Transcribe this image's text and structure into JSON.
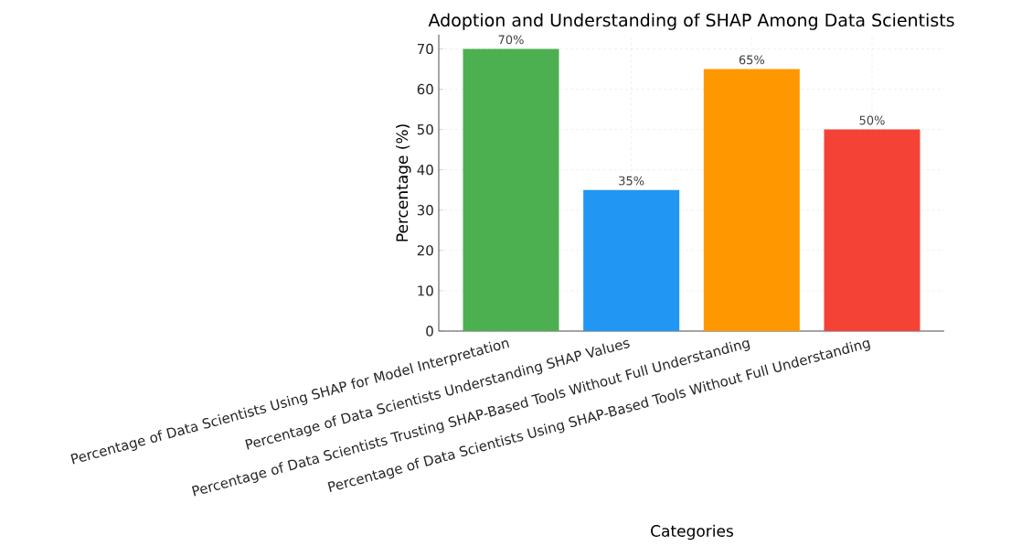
{
  "chart_data": {
    "type": "bar",
    "title": "Adoption and Understanding of SHAP Among Data Scientists",
    "xlabel": "Categories",
    "ylabel": "Percentage (%)",
    "categories": [
      "Percentage of Data Scientists Using SHAP for Model Interpretation",
      "Percentage of Data Scientists Understanding SHAP Values",
      "Percentage of Data Scientists Trusting SHAP-Based Tools Without Full Understanding",
      "Percentage of Data Scientists Using SHAP-Based Tools Without Full Understanding"
    ],
    "values": [
      70,
      35,
      65,
      50
    ],
    "colors": [
      "#4caf50",
      "#2196f3",
      "#ff9800",
      "#f44336"
    ],
    "value_labels": [
      "70%",
      "35%",
      "65%",
      "50%"
    ],
    "ylim": [
      0,
      73.5
    ],
    "yticks": [
      0,
      10,
      20,
      30,
      40,
      50,
      60,
      70
    ],
    "grid": true
  }
}
